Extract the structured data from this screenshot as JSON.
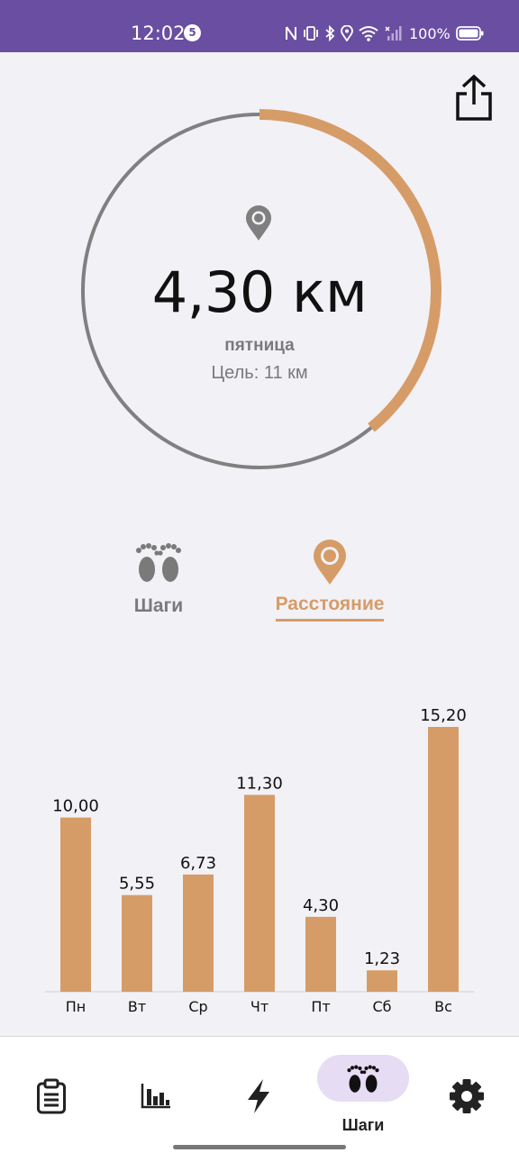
{
  "status_bar": {
    "time": "12:02",
    "notification_count": "5",
    "battery_percent": "100%"
  },
  "summary": {
    "value": "4,30 км",
    "day": "пятница",
    "goal": "Цель: 11 км",
    "progress_fraction": 0.391
  },
  "modes": {
    "steps_label": "Шаги",
    "distance_label": "Расстояние",
    "selected": "distance"
  },
  "chart_data": {
    "type": "bar",
    "categories": [
      "Пн",
      "Вт",
      "Ср",
      "Чт",
      "Пт",
      "Сб",
      "Вс"
    ],
    "values": [
      10.0,
      5.55,
      6.73,
      11.3,
      4.3,
      1.23,
      15.2
    ],
    "value_labels": [
      "10,00",
      "5,55",
      "6,73",
      "11,30",
      "4,30",
      "1,23",
      "15,20"
    ],
    "ylim": [
      0,
      15.2
    ],
    "grid": false,
    "bar_color": "#d69c67"
  },
  "bottom_nav": {
    "items": [
      "clipboard-icon",
      "bar-chart-icon",
      "lightning-icon",
      "footprints-icon",
      "gear-icon"
    ],
    "active_label": "Шаги"
  },
  "colors": {
    "accent": "#d69c67",
    "status_bar": "#6a4ea2",
    "ring_track": "#808080",
    "active_pill": "#e6dcf4"
  }
}
